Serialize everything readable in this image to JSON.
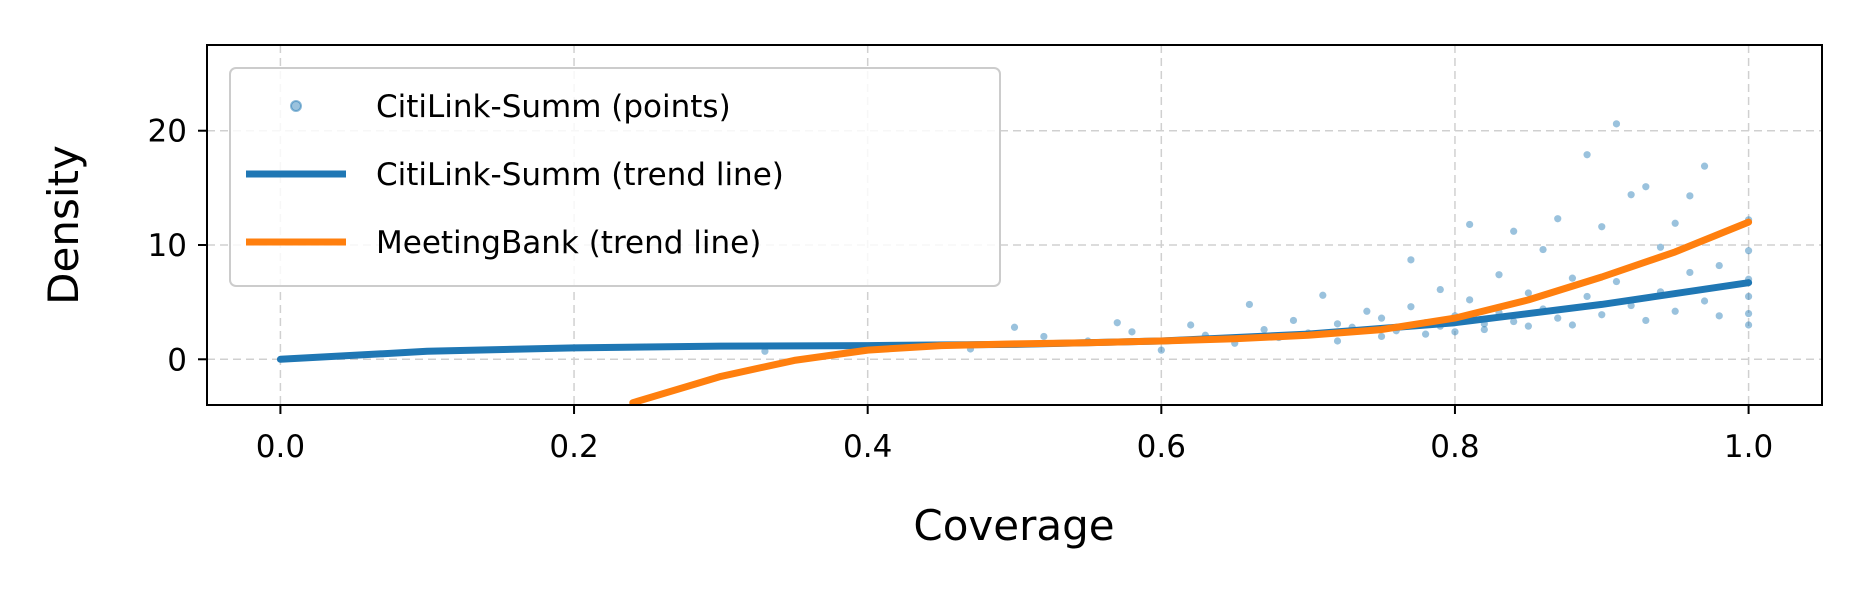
{
  "chart_data": {
    "type": "scatter",
    "title": "",
    "xlabel": "Coverage",
    "ylabel": "Density",
    "xlim": [
      -0.05,
      1.05
    ],
    "ylim": [
      -4,
      27.5
    ],
    "x_ticks": [
      0.0,
      0.2,
      0.4,
      0.6,
      0.8,
      1.0
    ],
    "x_tick_labels": [
      "0.0",
      "0.2",
      "0.4",
      "0.6",
      "0.8",
      "1.0"
    ],
    "y_ticks": [
      0,
      10,
      20
    ],
    "y_tick_labels": [
      "0",
      "10",
      "20"
    ],
    "grid": true,
    "legend_position": "upper-left",
    "series": [
      {
        "name": "CitiLink-Summ (points)",
        "kind": "scatter",
        "color": "#1f77b4",
        "points": [
          [
            0.33,
            0.7
          ],
          [
            0.42,
            1.1
          ],
          [
            0.47,
            0.9
          ],
          [
            0.5,
            2.8
          ],
          [
            0.52,
            2.0
          ],
          [
            0.55,
            1.6
          ],
          [
            0.57,
            3.2
          ],
          [
            0.58,
            2.4
          ],
          [
            0.6,
            0.8
          ],
          [
            0.62,
            3.0
          ],
          [
            0.63,
            2.1
          ],
          [
            0.65,
            1.4
          ],
          [
            0.66,
            4.8
          ],
          [
            0.67,
            2.6
          ],
          [
            0.68,
            1.9
          ],
          [
            0.69,
            3.4
          ],
          [
            0.7,
            2.3
          ],
          [
            0.71,
            5.6
          ],
          [
            0.72,
            1.6
          ],
          [
            0.72,
            3.1
          ],
          [
            0.73,
            2.8
          ],
          [
            0.74,
            4.2
          ],
          [
            0.75,
            2.0
          ],
          [
            0.75,
            3.6
          ],
          [
            0.76,
            2.5
          ],
          [
            0.77,
            8.7
          ],
          [
            0.77,
            4.6
          ],
          [
            0.78,
            3.2
          ],
          [
            0.78,
            2.2
          ],
          [
            0.79,
            6.1
          ],
          [
            0.79,
            2.9
          ],
          [
            0.8,
            3.8
          ],
          [
            0.8,
            2.4
          ],
          [
            0.81,
            11.8
          ],
          [
            0.81,
            5.2
          ],
          [
            0.82,
            3.1
          ],
          [
            0.82,
            2.6
          ],
          [
            0.83,
            7.4
          ],
          [
            0.83,
            4.1
          ],
          [
            0.84,
            11.2
          ],
          [
            0.84,
            3.3
          ],
          [
            0.85,
            5.8
          ],
          [
            0.85,
            2.9
          ],
          [
            0.86,
            9.6
          ],
          [
            0.86,
            4.4
          ],
          [
            0.87,
            12.3
          ],
          [
            0.87,
            3.6
          ],
          [
            0.88,
            7.1
          ],
          [
            0.88,
            3.0
          ],
          [
            0.89,
            17.9
          ],
          [
            0.89,
            5.5
          ],
          [
            0.9,
            11.6
          ],
          [
            0.9,
            3.9
          ],
          [
            0.91,
            20.6
          ],
          [
            0.91,
            6.8
          ],
          [
            0.92,
            14.4
          ],
          [
            0.92,
            4.7
          ],
          [
            0.93,
            15.1
          ],
          [
            0.93,
            3.4
          ],
          [
            0.94,
            9.8
          ],
          [
            0.94,
            5.9
          ],
          [
            0.95,
            11.9
          ],
          [
            0.95,
            4.2
          ],
          [
            0.96,
            14.3
          ],
          [
            0.96,
            7.6
          ],
          [
            0.97,
            16.9
          ],
          [
            0.97,
            5.1
          ],
          [
            0.98,
            8.2
          ],
          [
            0.98,
            3.8
          ],
          [
            1.0,
            12.2
          ],
          [
            1.0,
            9.5
          ],
          [
            1.0,
            7.0
          ],
          [
            1.0,
            5.5
          ],
          [
            1.0,
            4.0
          ],
          [
            1.0,
            3.0
          ]
        ]
      },
      {
        "name": "CitiLink-Summ (trend line)",
        "kind": "line",
        "color": "#1f77b4",
        "x": [
          0.0,
          0.1,
          0.2,
          0.3,
          0.4,
          0.5,
          0.6,
          0.7,
          0.8,
          0.9,
          1.0
        ],
        "y": [
          0.0,
          0.7,
          1.0,
          1.15,
          1.2,
          1.3,
          1.6,
          2.2,
          3.2,
          4.8,
          6.7
        ]
      },
      {
        "name": "MeetingBank (trend line)",
        "kind": "line",
        "color": "#ff7f0e",
        "x": [
          0.24,
          0.3,
          0.35,
          0.4,
          0.45,
          0.5,
          0.55,
          0.6,
          0.65,
          0.7,
          0.75,
          0.8,
          0.85,
          0.9,
          0.95,
          1.0
        ],
        "y": [
          -3.8,
          -1.5,
          -0.1,
          0.8,
          1.2,
          1.35,
          1.45,
          1.6,
          1.8,
          2.1,
          2.6,
          3.6,
          5.2,
          7.2,
          9.4,
          12.0
        ]
      }
    ]
  }
}
